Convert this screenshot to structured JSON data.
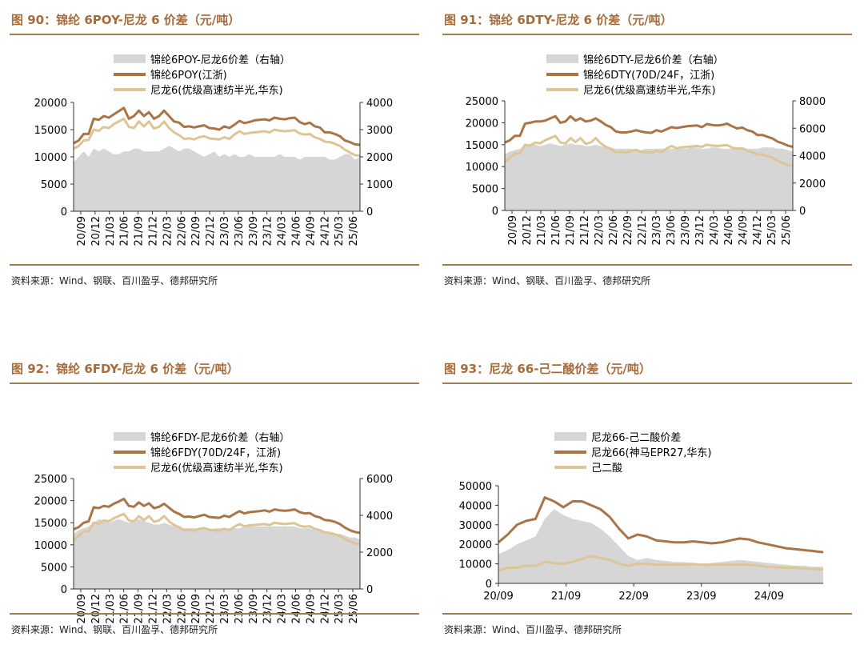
{
  "colors": {
    "area": "#d6d6d6",
    "dark": "#a87548",
    "light": "#ddc596",
    "accent": "#a56b3c",
    "rule": "#a57c4f"
  },
  "charts": [
    {
      "title": "图 90：锦纶 6POY-尼龙 6 价差（元/吨）",
      "source": "资料来源：Wind、钢联、百川盈孚、德邦研究所",
      "chart_data": {
        "type": "area+line",
        "legend": [
          "锦纶6POY-尼龙6价差（右轴）",
          "锦纶6POY(江浙)",
          "尼龙6(优级高速纺半光,华东)"
        ],
        "x_ticks": [
          "20/09",
          "20/12",
          "21/03",
          "21/06",
          "21/09",
          "21/12",
          "22/03",
          "22/06",
          "22/09",
          "22/12",
          "23/03",
          "23/06",
          "23/09",
          "23/12",
          "24/03",
          "24/06",
          "24/09",
          "24/12",
          "25/03",
          "25/06"
        ],
        "ylim_left": [
          0,
          20000
        ],
        "yticks_left": [
          0,
          5000,
          10000,
          15000,
          20000
        ],
        "ylim_right": [
          0,
          4000
        ],
        "yticks_right": [
          0,
          1000,
          2000,
          3000,
          4000
        ],
        "series": [
          {
            "name": "锦纶6POY-尼龙6价差（右轴）",
            "axis": "right",
            "type": "area",
            "values": [
              1800,
              2000,
              2200,
              2000,
              2300,
              2200,
              2300,
              2200,
              2100,
              2100,
              2200,
              2200,
              2300,
              2300,
              2200,
              2200,
              2200,
              2200,
              2300,
              2400,
              2300,
              2200,
              2300,
              2300,
              2200,
              2100,
              2000,
              2100,
              2200,
              2000,
              2100,
              2000,
              2100,
              2000,
              2000,
              2100,
              2000,
              2000,
              2000,
              2000,
              2000,
              2100,
              2000,
              2000,
              2000,
              1900,
              2000,
              2000,
              2000,
              2000,
              2000,
              1900,
              1900,
              2000,
              2100,
              2100,
              1900,
              2000
            ]
          },
          {
            "name": "锦纶6POY(江浙)",
            "axis": "left",
            "type": "line",
            "values": [
              12500,
              13000,
              14200,
              14200,
              17000,
              16800,
              17500,
              17200,
              17800,
              18400,
              19000,
              17000,
              17500,
              18500,
              17500,
              18200,
              17000,
              17500,
              18500,
              17500,
              16500,
              16300,
              15500,
              15600,
              15400,
              15600,
              15800,
              15300,
              15200,
              15000,
              15600,
              15300,
              15900,
              16600,
              16200,
              16400,
              16700,
              16800,
              16900,
              16700,
              17200,
              17000,
              16900,
              17100,
              17200,
              16400,
              16000,
              16300,
              15600,
              15400,
              14500,
              14500,
              14200,
              13800,
              13000,
              12700,
              12300,
              12200
            ]
          },
          {
            "name": "尼龙6(优级高速纺半光,华东)",
            "axis": "left",
            "type": "line",
            "values": [
              11500,
              12000,
              13000,
              13100,
              15000,
              14800,
              15500,
              15300,
              16000,
              16500,
              17000,
              15500,
              15300,
              16500,
              15600,
              16500,
              15200,
              15500,
              16500,
              15300,
              14500,
              14000,
              13300,
              13400,
              13200,
              13600,
              13800,
              13400,
              13300,
              13200,
              13600,
              13300,
              14100,
              14700,
              14200,
              14400,
              14500,
              14600,
              14700,
              14500,
              15000,
              14800,
              14700,
              14800,
              14900,
              14300,
              14100,
              14200,
              13600,
              13300,
              12800,
              12700,
              12400,
              12000,
              11300,
              10800,
              10300,
              10200
            ]
          }
        ]
      }
    },
    {
      "title": "图 91：锦纶 6DTY-尼龙 6 价差（元/吨）",
      "source": "资料来源：Wind、钢联、百川盈孚、德邦研究所",
      "chart_data": {
        "type": "area+line",
        "legend": [
          "锦纶6DTY-尼龙6价差（右轴）",
          "锦纶6DTY(70D/24F，江浙)",
          "尼龙6(优级高速纺半光,华东)"
        ],
        "x_ticks": [
          "20/09",
          "20/12",
          "21/03",
          "21/06",
          "21/09",
          "21/12",
          "22/03",
          "22/06",
          "22/09",
          "22/12",
          "23/03",
          "23/06",
          "23/09",
          "23/12",
          "24/03",
          "24/06",
          "24/09",
          "24/12",
          "25/03",
          "25/06"
        ],
        "ylim_left": [
          0,
          25000
        ],
        "yticks_left": [
          0,
          5000,
          10000,
          15000,
          20000,
          25000
        ],
        "ylim_right": [
          0,
          8000
        ],
        "yticks_right": [
          0,
          2000,
          4000,
          6000,
          8000
        ],
        "series": [
          {
            "name": "锦纶6DTY-尼龙6价差（右轴）",
            "axis": "right",
            "type": "area",
            "values": [
              4100,
              4300,
              4400,
              4500,
              4700,
              4800,
              4800,
              4700,
              4800,
              4900,
              4800,
              4700,
              4800,
              4900,
              4800,
              4800,
              4700,
              4700,
              4800,
              4700,
              4600,
              4600,
              4500,
              4500,
              4500,
              4500,
              4400,
              4400,
              4500,
              4500,
              4500,
              4500,
              4500,
              4500,
              4500,
              4500,
              4500,
              4600,
              4600,
              4500,
              4500,
              4600,
              4600,
              4500,
              4500,
              4500,
              4600,
              4600,
              4500,
              4500,
              4500,
              4600,
              4600,
              4600,
              4500,
              4500,
              4400,
              4300
            ]
          },
          {
            "name": "锦纶6DTY(70D/24F，江浙)",
            "axis": "left",
            "type": "line",
            "values": [
              15500,
              16000,
              17000,
              17000,
              19800,
              20000,
              20300,
              20300,
              20500,
              21000,
              21500,
              20000,
              20300,
              21500,
              20500,
              21000,
              20300,
              20500,
              21000,
              20300,
              19500,
              19000,
              18000,
              17800,
              17800,
              18000,
              18300,
              18000,
              17800,
              17700,
              18300,
              18000,
              18500,
              19000,
              18800,
              19000,
              19200,
              19300,
              19400,
              19000,
              19700,
              19500,
              19400,
              19500,
              19800,
              19200,
              18700,
              18900,
              18300,
              18000,
              17200,
              17200,
              16800,
              16400,
              15700,
              15300,
              14800,
              14500
            ]
          },
          {
            "name": "尼龙6(优级高速纺半光,华东)",
            "axis": "left",
            "type": "line",
            "values": [
              11000,
              12000,
              13000,
              13100,
              15000,
              14800,
              15500,
              15300,
              16000,
              16500,
              17000,
              15500,
              15300,
              16500,
              15600,
              16500,
              15200,
              15500,
              16500,
              15300,
              14500,
              14000,
              13300,
              13400,
              13200,
              13600,
              13800,
              13400,
              13300,
              13200,
              13600,
              13300,
              14100,
              14700,
              14200,
              14400,
              14500,
              14600,
              14700,
              14500,
              15000,
              14800,
              14700,
              14800,
              14900,
              14300,
              14100,
              14200,
              13600,
              13300,
              12800,
              12700,
              12400,
              12000,
              11300,
              10800,
              10300,
              10200
            ]
          }
        ]
      }
    },
    {
      "title": "图 92：锦纶 6FDY-尼龙 6 价差（元/吨）",
      "source": "资料来源：Wind、钢联、百川盈孚、德邦研究所",
      "chart_data": {
        "type": "area+line",
        "legend": [
          "锦纶6FDY-尼龙6价差（右轴）",
          "锦纶6FDY(70D/24F，江浙)",
          "尼龙6(优级高速纺半光,华东)"
        ],
        "x_ticks": [
          "20/09",
          "20/12",
          "21/03",
          "21/06",
          "21/09",
          "21/12",
          "22/03",
          "22/06",
          "22/09",
          "22/12",
          "23/03",
          "23/06",
          "23/09",
          "23/12",
          "24/03",
          "24/06",
          "24/09",
          "24/12",
          "25/03",
          "25/06"
        ],
        "ylim_left": [
          0,
          25000
        ],
        "yticks_left": [
          0,
          5000,
          10000,
          15000,
          20000,
          25000
        ],
        "ylim_right": [
          0,
          6000
        ],
        "yticks_right": [
          0,
          2000,
          4000,
          6000
        ],
        "series": [
          {
            "name": "锦纶6FDY-尼龙6价差（右轴）",
            "axis": "right",
            "type": "area",
            "values": [
              3000,
              3200,
              3300,
              3400,
              3600,
              3800,
              3700,
              3600,
              3700,
              3800,
              3700,
              3600,
              3700,
              3800,
              3700,
              3600,
              3500,
              3500,
              3600,
              3500,
              3400,
              3300,
              3300,
              3300,
              3300,
              3300,
              3300,
              3200,
              3300,
              3300,
              3300,
              3300,
              3300,
              3300,
              3400,
              3400,
              3400,
              3400,
              3400,
              3400,
              3400,
              3400,
              3400,
              3400,
              3400,
              3300,
              3300,
              3300,
              3200,
              3200,
              3100,
              3100,
              3000,
              3000,
              2900,
              2800,
              2800,
              2700
            ]
          },
          {
            "name": "锦纶6FDY(70D/24F，江浙)",
            "axis": "left",
            "type": "line",
            "values": [
              13500,
              14000,
              15000,
              15300,
              18500,
              18300,
              18800,
              18600,
              19300,
              19800,
              20400,
              18800,
              18600,
              19600,
              18800,
              19400,
              18300,
              18600,
              19300,
              18400,
              17500,
              17000,
              16300,
              16400,
              16200,
              16500,
              16800,
              16300,
              16200,
              16100,
              16600,
              16300,
              17000,
              17600,
              17100,
              17400,
              17500,
              17600,
              17800,
              17500,
              18000,
              17800,
              17700,
              17800,
              18000,
              17400,
              17100,
              17200,
              16500,
              16200,
              15600,
              15500,
              15200,
              14700,
              13900,
              13300,
              12900,
              12700
            ]
          },
          {
            "name": "尼龙6(优级高速纺半光,华东)",
            "axis": "left",
            "type": "line",
            "values": [
              11000,
              12000,
              13000,
              13100,
              15000,
              14800,
              15500,
              15300,
              16000,
              16500,
              17000,
              15500,
              15300,
              16500,
              15600,
              16500,
              15200,
              15500,
              16500,
              15300,
              14500,
              14000,
              13300,
              13400,
              13200,
              13600,
              13800,
              13400,
              13300,
              13200,
              13600,
              13300,
              14100,
              14700,
              14200,
              14400,
              14500,
              14600,
              14700,
              14500,
              15000,
              14800,
              14700,
              14800,
              14900,
              14300,
              14100,
              14200,
              13600,
              13300,
              12800,
              12700,
              12400,
              12000,
              11300,
              10800,
              10300,
              10200
            ]
          }
        ]
      }
    },
    {
      "title": "图 93：尼龙 66-己二酸价差（元/吨）",
      "source": "资料来源：Wind、百川盈孚、德邦研究所",
      "chart_data": {
        "type": "area+line",
        "legend": [
          "尼龙66-己二酸价差",
          "尼龙66(神马EPR27,华东)",
          "己二酸"
        ],
        "x_ticks": [
          "20/09",
          "21/09",
          "22/09",
          "23/09",
          "24/09"
        ],
        "ylim_left": [
          0,
          50000
        ],
        "yticks_left": [
          0,
          10000,
          20000,
          30000,
          40000,
          50000
        ],
        "series": [
          {
            "name": "尼龙66-己二酸价差",
            "axis": "left",
            "type": "area",
            "values": [
              15000,
              17000,
              20000,
              22000,
              24000,
              33000,
              38000,
              35000,
              33000,
              32000,
              31000,
              28000,
              24000,
              19000,
              14000,
              12000,
              13000,
              12000,
              11500,
              11000,
              11000,
              10500,
              10000,
              10500,
              11000,
              11500,
              12000,
              11500,
              11000,
              10500,
              10000,
              9500,
              9000,
              9000,
              8500,
              8500
            ]
          },
          {
            "name": "尼龙66(神马EPR27,华东)",
            "axis": "left",
            "type": "line",
            "values": [
              21000,
              25000,
              30000,
              32000,
              33000,
              44000,
              42000,
              39000,
              42000,
              42000,
              40000,
              38000,
              34000,
              28000,
              23000,
              25000,
              24000,
              22000,
              21500,
              21000,
              21000,
              21500,
              21000,
              20500,
              21000,
              22000,
              23000,
              22500,
              21000,
              20000,
              19000,
              18000,
              17500,
              17000,
              16500,
              16000
            ]
          },
          {
            "name": "己二酸",
            "axis": "left",
            "type": "line",
            "values": [
              6500,
              8000,
              8000,
              9000,
              9000,
              11000,
              10500,
              10000,
              11000,
              12500,
              14000,
              13000,
              12000,
              10000,
              9000,
              10000,
              10000,
              9500,
              9500,
              9500,
              9500,
              9800,
              9600,
              9500,
              9500,
              9500,
              9500,
              9500,
              9200,
              8500,
              8200,
              8000,
              8000,
              7500,
              7500,
              7000
            ]
          }
        ]
      }
    }
  ]
}
